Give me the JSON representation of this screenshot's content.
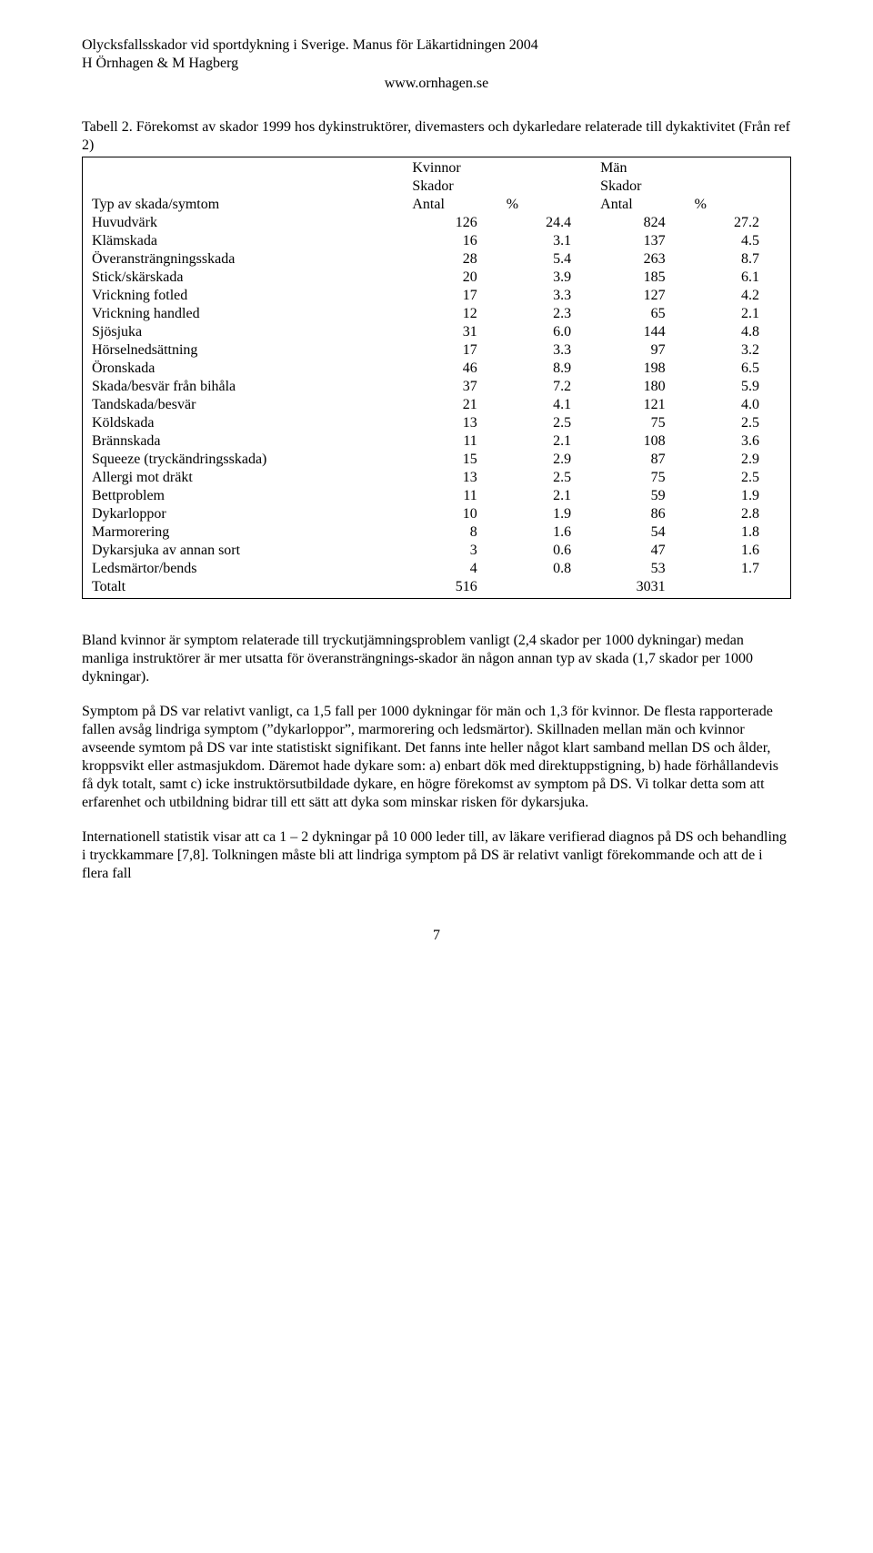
{
  "header": {
    "title": "Olycksfallsskador vid sportdykning i Sverige. Manus för Läkartidningen 2004",
    "authors": "H Örnhagen & M Hagberg",
    "url": "www.ornhagen.se"
  },
  "table": {
    "caption": "Tabell 2. Förekomst av skador 1999 hos dykinstruktörer, divemasters och dykarledare relaterade till dykaktivitet (Från ref 2)",
    "group_headers": {
      "col2": "Kvinnor",
      "col3": "Män"
    },
    "sub_headers": {
      "col2": "Skador",
      "col3": "Skador"
    },
    "col_headers": {
      "type": "Typ av skada/symtom",
      "antal": "Antal",
      "pct": "%"
    },
    "rows": [
      {
        "type": "Huvudvärk",
        "a1": "126",
        "p1": "24.4",
        "a2": "824",
        "p2": "27.2"
      },
      {
        "type": "Klämskada",
        "a1": "16",
        "p1": "3.1",
        "a2": "137",
        "p2": "4.5"
      },
      {
        "type": "Överansträngningsskada",
        "a1": "28",
        "p1": "5.4",
        "a2": "263",
        "p2": "8.7"
      },
      {
        "type": "Stick/skärskada",
        "a1": "20",
        "p1": "3.9",
        "a2": "185",
        "p2": "6.1"
      },
      {
        "type": "Vrickning fotled",
        "a1": "17",
        "p1": "3.3",
        "a2": "127",
        "p2": "4.2"
      },
      {
        "type": "Vrickning handled",
        "a1": "12",
        "p1": "2.3",
        "a2": "65",
        "p2": "2.1"
      },
      {
        "type": "Sjösjuka",
        "a1": "31",
        "p1": "6.0",
        "a2": "144",
        "p2": "4.8"
      },
      {
        "type": "Hörselnedsättning",
        "a1": "17",
        "p1": "3.3",
        "a2": "97",
        "p2": "3.2"
      },
      {
        "type": "Öronskada",
        "a1": "46",
        "p1": "8.9",
        "a2": "198",
        "p2": "6.5"
      },
      {
        "type": "Skada/besvär från bihåla",
        "a1": "37",
        "p1": "7.2",
        "a2": "180",
        "p2": "5.9"
      },
      {
        "type": "Tandskada/besvär",
        "a1": "21",
        "p1": "4.1",
        "a2": "121",
        "p2": "4.0"
      },
      {
        "type": "Köldskada",
        "a1": "13",
        "p1": "2.5",
        "a2": "75",
        "p2": "2.5"
      },
      {
        "type": "Brännskada",
        "a1": "11",
        "p1": "2.1",
        "a2": "108",
        "p2": "3.6"
      },
      {
        "type": "Squeeze (tryckändringsskada)",
        "a1": "15",
        "p1": "2.9",
        "a2": "87",
        "p2": "2.9"
      },
      {
        "type": "Allergi mot dräkt",
        "a1": "13",
        "p1": "2.5",
        "a2": "75",
        "p2": "2.5"
      },
      {
        "type": "Bettproblem",
        "a1": "11",
        "p1": "2.1",
        "a2": "59",
        "p2": "1.9"
      },
      {
        "type": "Dykarloppor",
        "a1": "10",
        "p1": "1.9",
        "a2": "86",
        "p2": "2.8"
      },
      {
        "type": "Marmorering",
        "a1": "8",
        "p1": "1.6",
        "a2": "54",
        "p2": "1.8"
      },
      {
        "type": "Dykarsjuka av annan sort",
        "a1": "3",
        "p1": "0.6",
        "a2": "47",
        "p2": "1.6"
      },
      {
        "type": "Ledsmärtor/bends",
        "a1": "4",
        "p1": "0.8",
        "a2": "53",
        "p2": "1.7"
      }
    ],
    "totals": {
      "label": "Totalt",
      "a1": "516",
      "a2": "3031"
    }
  },
  "paragraphs": {
    "p1": "Bland kvinnor är symptom relaterade till tryckutjämningsproblem vanligt (2,4 skador per 1000 dykningar) medan manliga instruktörer är mer utsatta för överansträngnings-skador än någon annan typ av skada (1,7 skador per 1000 dykningar).",
    "p2": "Symptom på DS var relativt vanligt, ca 1,5 fall per 1000 dykningar för män och 1,3 för kvinnor. De flesta rapporterade fallen avsåg lindriga symptom (”dykarloppor”, marmorering och ledsmärtor). Skillnaden mellan män och kvinnor avseende symtom på DS var inte statistiskt signifikant. Det fanns inte heller något klart samband mellan DS och ålder, kroppsvikt eller astmasjukdom. Däremot hade dykare som: a) enbart dök med direktuppstigning, b) hade förhållandevis få dyk totalt, samt c) icke instruktörsutbildade dykare, en högre förekomst av symptom på DS. Vi tolkar detta som att erfarenhet och utbildning bidrar till ett sätt att dyka som minskar risken för dykarsjuka.",
    "p3": "Internationell statistik visar att ca 1 – 2 dykningar på 10 000 leder till, av läkare verifierad diagnos på DS och behandling i tryckkammare [7,8]. Tolkningen måste bli att lindriga symptom på DS är relativt vanligt förekommande och att de i flera fall"
  },
  "page_number": "7"
}
